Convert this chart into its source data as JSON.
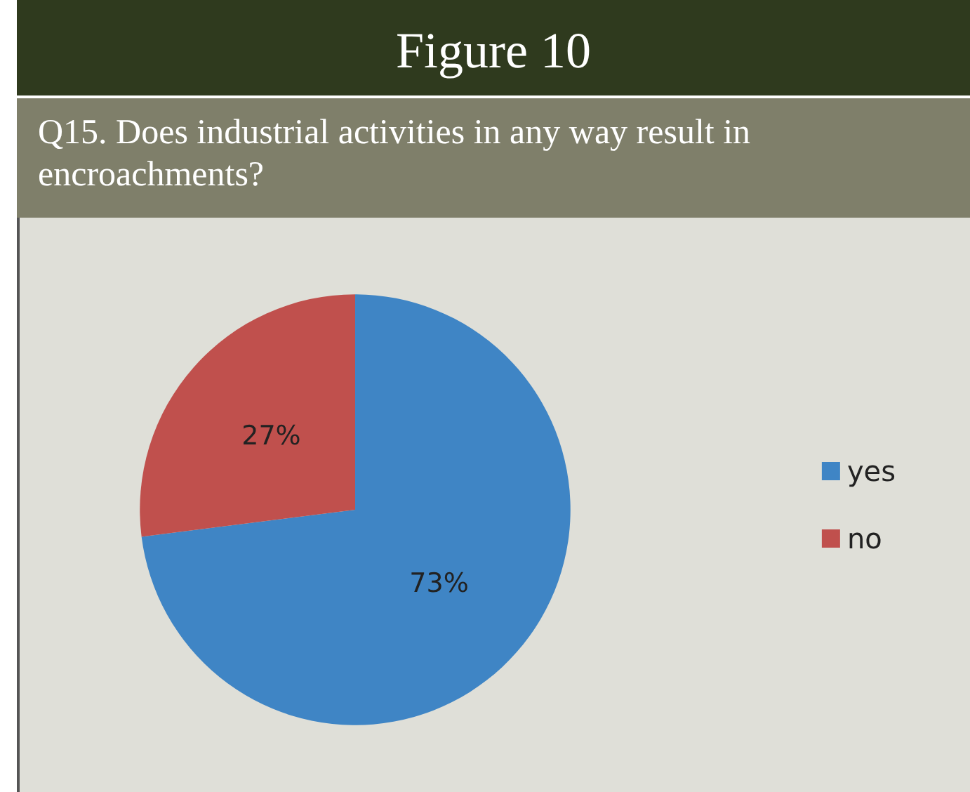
{
  "chart_data": {
    "type": "pie",
    "title": "Figure 10",
    "subtitle": "Q15. Does industrial activities in any way result in encroachments?",
    "categories": [
      "yes",
      "no"
    ],
    "values": [
      73,
      27
    ],
    "colors": [
      "#3f85c5",
      "#c0504d"
    ],
    "value_labels": [
      "73%",
      "27%"
    ],
    "legend": "right"
  }
}
